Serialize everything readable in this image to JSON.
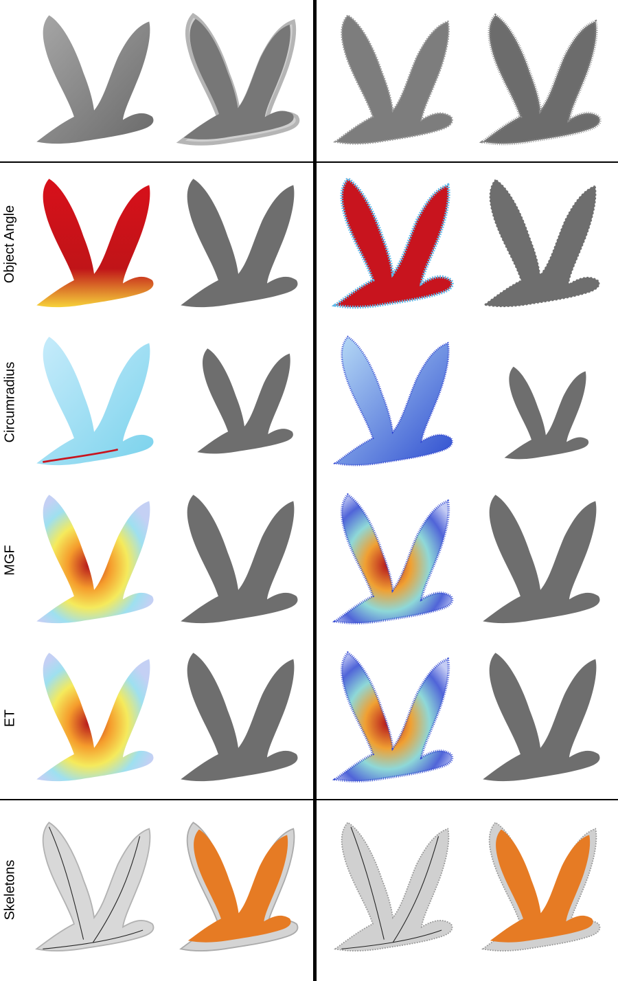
{
  "rows": [
    {
      "id": "input",
      "label": ""
    },
    {
      "id": "object-angle",
      "label": "Object Angle"
    },
    {
      "id": "circumradius",
      "label": "Circumradius"
    },
    {
      "id": "mgf",
      "label": "MGF"
    },
    {
      "id": "et",
      "label": "ET"
    },
    {
      "id": "skeletons",
      "label": "Skeletons"
    }
  ],
  "columns": [
    "clean-surface",
    "clean-result",
    "noisy-surface",
    "noisy-result"
  ],
  "colors": {
    "surface_gray": "#8c8c8c",
    "result_gray": "#6e6e6e",
    "heat_red": "#c8141e",
    "heat_blue": "#3246d2",
    "heat_cyan": "#9be6f5",
    "skeleton_orange": "#e67b24"
  }
}
